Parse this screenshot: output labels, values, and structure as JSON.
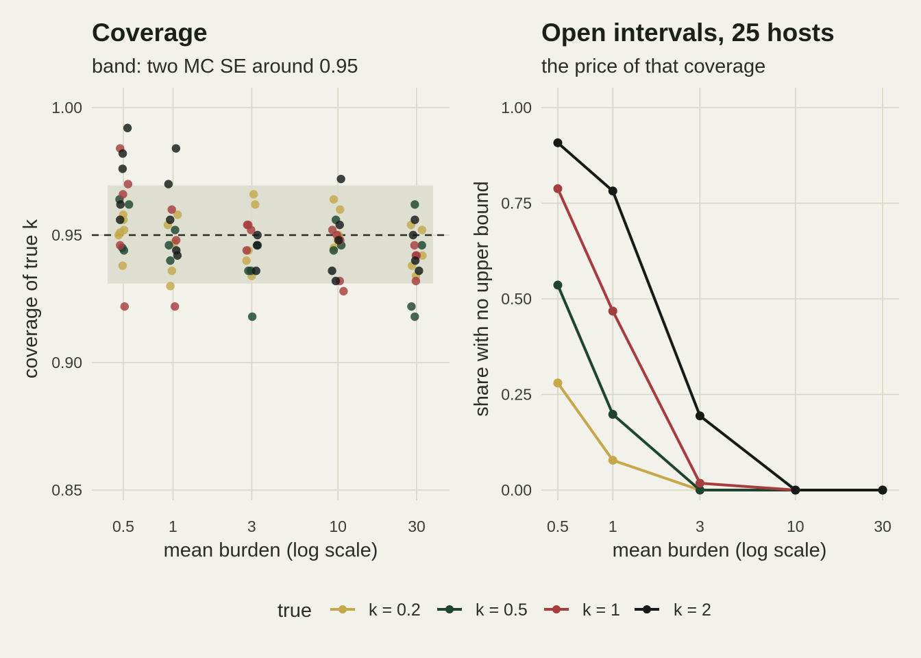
{
  "colors": {
    "background": "#f2f1ea",
    "grid": "#d6d6c6",
    "band": "#dcddcf",
    "k=0.2": "#c5a84a",
    "k=0.5": "#1f4530",
    "k=1": "#a63d3f",
    "k=2": "#161b18"
  },
  "legend": {
    "title": "true",
    "position": "bottom",
    "items": [
      "k = 0.2",
      "k = 0.5",
      "k = 1",
      "k = 2"
    ]
  },
  "chart_data": [
    {
      "type": "scatter",
      "title": "Coverage",
      "subtitle": "band: two MC SE around 0.95",
      "xlabel": "mean burden (log scale)",
      "ylabel": "coverage of true k",
      "x_scale": "log",
      "x_ticks": [
        0.5,
        1,
        3,
        10,
        30
      ],
      "x_tick_labels": [
        "0.5",
        "1",
        "3",
        "10",
        "30"
      ],
      "y_ticks": [
        0.85,
        0.9,
        0.95,
        1.0
      ],
      "y_tick_labels": [
        "0.85",
        "0.90",
        "0.95",
        "1.00"
      ],
      "ylim": [
        0.845,
        1.005
      ],
      "reference_line": 0.95,
      "band": [
        0.931,
        0.9695
      ],
      "series": [
        {
          "name": "k = 0.2",
          "points": [
            [
              0.5,
              0.958
            ],
            [
              0.5,
              0.952
            ],
            [
              0.5,
              0.95
            ],
            [
              0.5,
              0.951
            ],
            [
              0.5,
              0.938
            ],
            [
              0.5,
              0.956
            ],
            [
              1,
              0.954
            ],
            [
              1,
              0.958
            ],
            [
              1,
              0.947
            ],
            [
              1,
              0.936
            ],
            [
              1,
              0.93
            ],
            [
              3,
              0.962
            ],
            [
              3,
              0.966
            ],
            [
              3,
              0.94
            ],
            [
              3,
              0.934
            ],
            [
              3,
              0.944
            ],
            [
              10,
              0.96
            ],
            [
              10,
              0.964
            ],
            [
              10,
              0.95
            ],
            [
              10,
              0.948
            ],
            [
              10,
              0.945
            ],
            [
              30,
              0.954
            ],
            [
              30,
              0.952
            ],
            [
              30,
              0.942
            ],
            [
              30,
              0.938
            ],
            [
              30,
              0.934
            ]
          ]
        },
        {
          "name": "k = 0.5",
          "points": [
            [
              0.5,
              0.962
            ],
            [
              0.5,
              0.964
            ],
            [
              0.5,
              0.945
            ],
            [
              0.5,
              0.944
            ],
            [
              1,
              0.952
            ],
            [
              1,
              0.94
            ],
            [
              1,
              0.946
            ],
            [
              3,
              0.946
            ],
            [
              3,
              0.936
            ],
            [
              3,
              0.936
            ],
            [
              3,
              0.918
            ],
            [
              10,
              0.956
            ],
            [
              10,
              0.944
            ],
            [
              10,
              0.946
            ],
            [
              30,
              0.962
            ],
            [
              30,
              0.918
            ],
            [
              30,
              0.922
            ],
            [
              30,
              0.946
            ]
          ]
        },
        {
          "name": "k = 1",
          "points": [
            [
              0.5,
              0.984
            ],
            [
              0.5,
              0.97
            ],
            [
              0.5,
              0.966
            ],
            [
              0.5,
              0.946
            ],
            [
              0.5,
              0.922
            ],
            [
              1,
              0.96
            ],
            [
              1,
              0.948
            ],
            [
              1,
              0.922
            ],
            [
              3,
              0.954
            ],
            [
              3,
              0.954
            ],
            [
              3,
              0.952
            ],
            [
              3,
              0.944
            ],
            [
              10,
              0.952
            ],
            [
              10,
              0.95
            ],
            [
              10,
              0.948
            ],
            [
              10,
              0.932
            ],
            [
              10,
              0.928
            ],
            [
              30,
              0.946
            ],
            [
              30,
              0.942
            ],
            [
              30,
              0.942
            ],
            [
              30,
              0.932
            ]
          ]
        },
        {
          "name": "k = 2",
          "points": [
            [
              0.5,
              0.992
            ],
            [
              0.5,
              0.982
            ],
            [
              0.5,
              0.976
            ],
            [
              0.5,
              0.962
            ],
            [
              0.5,
              0.956
            ],
            [
              1,
              0.984
            ],
            [
              1,
              0.97
            ],
            [
              1,
              0.956
            ],
            [
              1,
              0.944
            ],
            [
              1,
              0.942
            ],
            [
              3,
              0.95
            ],
            [
              3,
              0.946
            ],
            [
              3,
              0.936
            ],
            [
              10,
              0.972
            ],
            [
              10,
              0.954
            ],
            [
              10,
              0.948
            ],
            [
              10,
              0.936
            ],
            [
              10,
              0.932
            ],
            [
              30,
              0.956
            ],
            [
              30,
              0.95
            ],
            [
              30,
              0.94
            ],
            [
              30,
              0.936
            ]
          ]
        }
      ]
    },
    {
      "type": "line",
      "title": "Open intervals, 25 hosts",
      "subtitle": "the price of that coverage",
      "xlabel": "mean burden (log scale)",
      "ylabel": "share with no upper bound",
      "x_scale": "log",
      "x": [
        0.5,
        1,
        3,
        10,
        30
      ],
      "x_tick_labels": [
        "0.5",
        "1",
        "3",
        "10",
        "30"
      ],
      "y_ticks": [
        0,
        0.25,
        0.5,
        0.75,
        1.0
      ],
      "y_tick_labels": [
        "0.00",
        "0.25",
        "0.50",
        "0.75",
        "1.00"
      ],
      "ylim": [
        -0.03,
        1.04
      ],
      "series": [
        {
          "name": "k = 0.2",
          "values": [
            0.28,
            0.078,
            0.0,
            0.0,
            0.0
          ]
        },
        {
          "name": "k = 0.5",
          "values": [
            0.536,
            0.198,
            0.0,
            0.0,
            0.0
          ]
        },
        {
          "name": "k = 1",
          "values": [
            0.788,
            0.468,
            0.018,
            0.0,
            0.0
          ]
        },
        {
          "name": "k = 2",
          "values": [
            0.908,
            0.782,
            0.194,
            0.0,
            0.0
          ]
        }
      ]
    }
  ]
}
